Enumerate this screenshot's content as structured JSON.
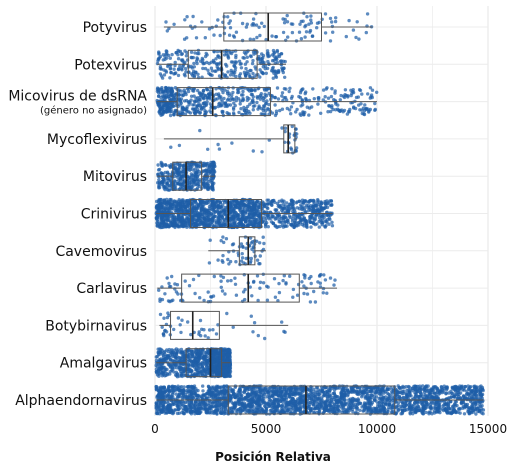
{
  "chart_data": {
    "type": "box-strip",
    "xlabel": "Posición Relativa",
    "ylabel": "",
    "xlim": [
      0,
      15000
    ],
    "xticks": [
      0,
      5000,
      10000,
      15000
    ],
    "grid": true,
    "point_color": "#1f5ea8",
    "box_color": "#555555",
    "categories": [
      {
        "label": "Potyvirus",
        "sublabel": "",
        "min": 400,
        "q1": 3100,
        "median": 5100,
        "q3": 7500,
        "max": 9800,
        "n": 110
      },
      {
        "label": "Potexvirus",
        "sublabel": "",
        "min": 100,
        "q1": 1500,
        "median": 3000,
        "q3": 4600,
        "max": 5900,
        "n": 320
      },
      {
        "label": "Micovirus de dsRNA",
        "sublabel": "(género no asignado)",
        "min": 100,
        "q1": 1000,
        "median": 2600,
        "q3": 5200,
        "max": 10000,
        "n": 650
      },
      {
        "label": "Mycoflexivirus",
        "sublabel": "",
        "min": 400,
        "q1": 5800,
        "median": 6000,
        "q3": 6300,
        "max": 6400,
        "n": 35
      },
      {
        "label": "Mitovirus",
        "sublabel": "",
        "min": 100,
        "q1": 800,
        "median": 1400,
        "q3": 2100,
        "max": 2700,
        "n": 400
      },
      {
        "label": "Crinivirus",
        "sublabel": "",
        "min": 50,
        "q1": 1600,
        "median": 3300,
        "q3": 4800,
        "max": 8000,
        "n": 1500
      },
      {
        "label": "Cavemovirus",
        "sublabel": "",
        "min": 2400,
        "q1": 3800,
        "median": 4200,
        "q3": 4500,
        "max": 5000,
        "n": 60
      },
      {
        "label": "Carlavirus",
        "sublabel": "",
        "min": 100,
        "q1": 1200,
        "median": 4200,
        "q3": 6500,
        "max": 8200,
        "n": 110
      },
      {
        "label": "Botybirnavirus",
        "sublabel": "",
        "min": 200,
        "q1": 700,
        "median": 1700,
        "q3": 2900,
        "max": 6000,
        "n": 45
      },
      {
        "label": "Amalgavirus",
        "sublabel": "",
        "min": 50,
        "q1": 1400,
        "median": 2500,
        "q3": 3000,
        "max": 3400,
        "n": 900
      },
      {
        "label": "Alphaendornavirus",
        "sublabel": "",
        "min": 50,
        "q1": 3300,
        "median": 6800,
        "q3": 10800,
        "max": 14800,
        "n": 2600
      }
    ]
  }
}
